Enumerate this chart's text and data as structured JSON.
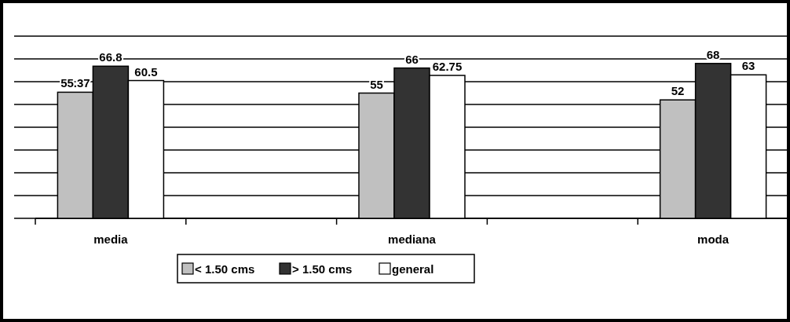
{
  "chart_data": {
    "type": "bar",
    "categories": [
      "media",
      null,
      "mediana",
      null,
      "moda"
    ],
    "series": [
      {
        "name": "< 1.50 cms",
        "color": "#c0c0c0",
        "values": [
          55.37,
          null,
          55,
          null,
          52
        ]
      },
      {
        "name": "> 1.50 cms",
        "color": "#333333",
        "values": [
          66.8,
          null,
          66,
          null,
          68
        ]
      },
      {
        "name": "general",
        "color": "#ffffff",
        "values": [
          60.5,
          null,
          62.75,
          null,
          63
        ]
      }
    ],
    "ylim": [
      0,
      80
    ],
    "yticks": [
      {
        "value": 0,
        "label": null
      },
      {
        "value": 10,
        "label": null
      },
      {
        "value": 20,
        "label": null
      },
      {
        "value": 30,
        "label": null
      },
      {
        "value": 40,
        "label": null
      },
      {
        "value": 50,
        "label": null
      },
      {
        "value": 60,
        "label": null
      },
      {
        "value": 70,
        "label": null
      },
      {
        "value": 80,
        "label": null
      }
    ],
    "grid": "y",
    "legend": "bottom",
    "data_labels": true,
    "tick_labels": "x"
  }
}
